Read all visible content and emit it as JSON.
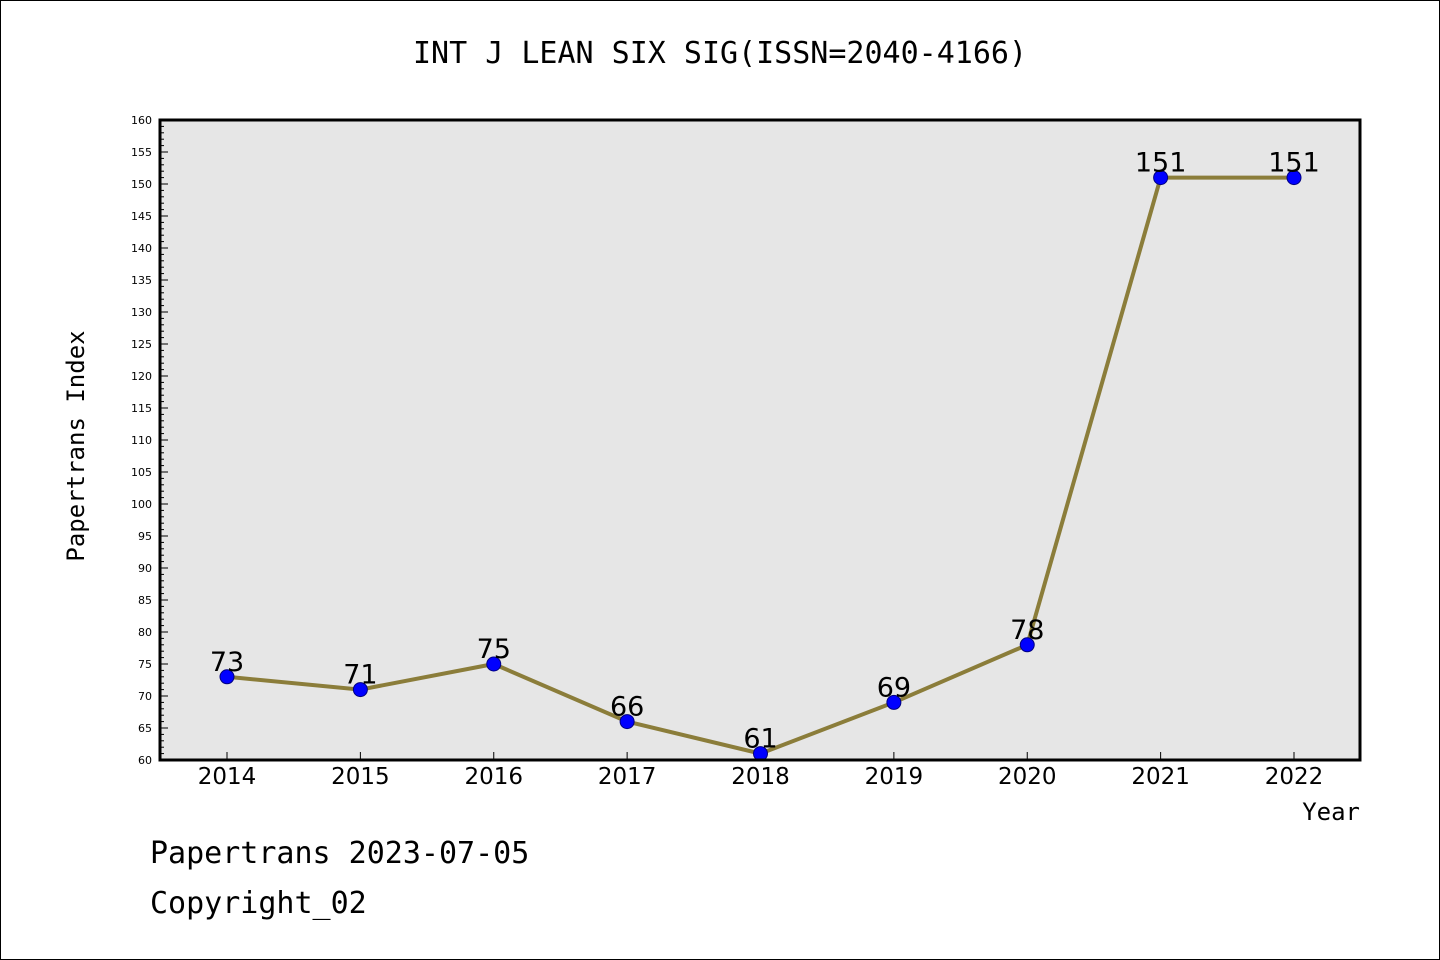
{
  "title": "INT J LEAN SIX SIG(ISSN=2040-4166)",
  "footer": {
    "line1": "Papertrans 2023-07-05",
    "line2": "Copyright_02"
  },
  "colors": {
    "plot_bg": "#e6e6e6",
    "line": "#8b7d3a",
    "marker": "#0000ff",
    "marker_edge": "#000080"
  },
  "chart_data": {
    "type": "line",
    "title": "INT J LEAN SIX SIG(ISSN=2040-4166)",
    "xlabel": "Year",
    "ylabel": "Papertrans Index",
    "categories": [
      "2014",
      "2015",
      "2016",
      "2017",
      "2018",
      "2019",
      "2020",
      "2021",
      "2022"
    ],
    "series": [
      {
        "values": [
          73,
          71,
          75,
          66,
          61,
          69,
          78,
          151,
          151
        ]
      }
    ],
    "ylim": [
      60,
      160
    ],
    "ytick_step": 5,
    "yminor_step": 1,
    "grid": false,
    "legend": "none"
  }
}
